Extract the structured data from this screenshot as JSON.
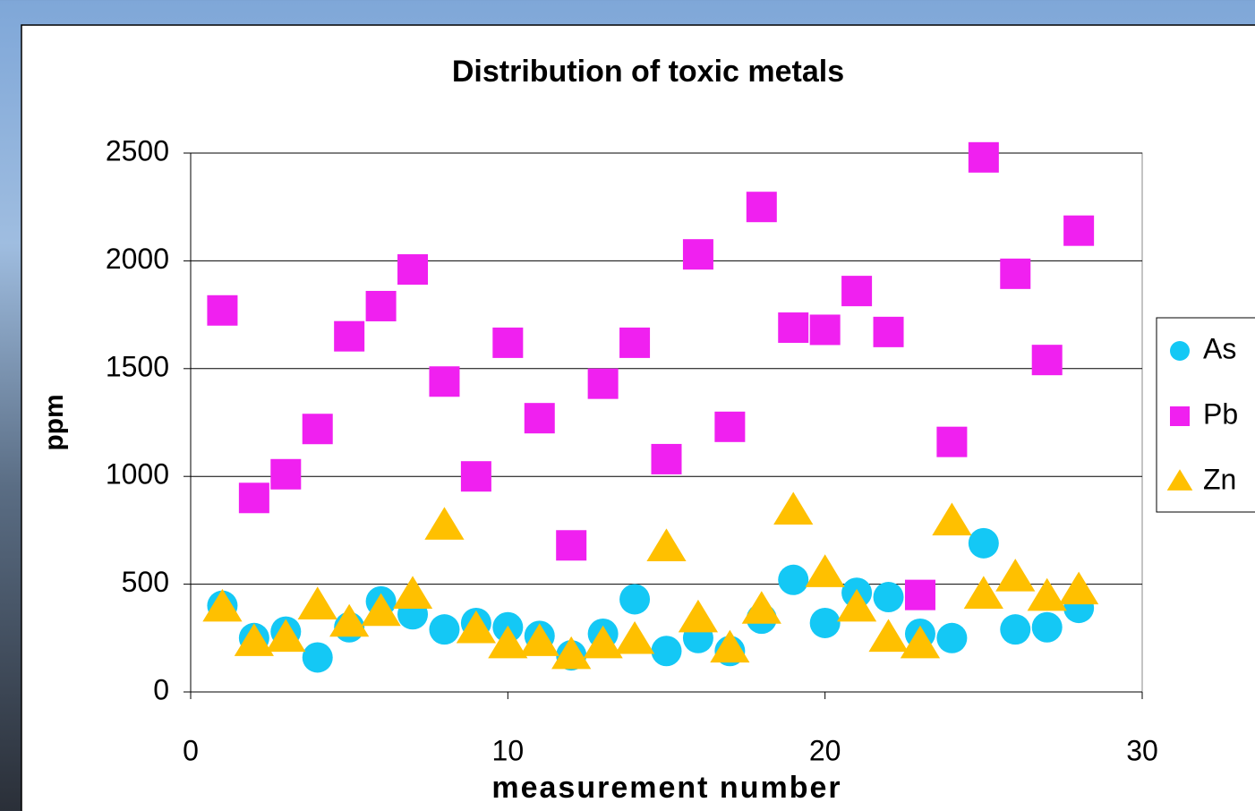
{
  "chart_data": {
    "type": "scatter",
    "title": "Distribution of toxic metals",
    "x_label": "measurement number",
    "y_label": "ppm",
    "x": [
      1,
      2,
      3,
      4,
      5,
      6,
      7,
      8,
      9,
      10,
      11,
      12,
      13,
      14,
      15,
      16,
      17,
      18,
      19,
      20,
      21,
      22,
      23,
      24,
      25,
      26,
      27,
      28
    ],
    "series": [
      {
        "name": "As",
        "color": "#14c8f5",
        "marker": "circle",
        "values": [
          400,
          250,
          280,
          160,
          300,
          420,
          360,
          290,
          320,
          300,
          260,
          170,
          270,
          430,
          190,
          250,
          190,
          340,
          520,
          320,
          460,
          440,
          270,
          250,
          690,
          290,
          300,
          390
        ]
      },
      {
        "name": "Pb",
        "color": "#f020f0",
        "marker": "square",
        "values": [
          1770,
          900,
          1010,
          1220,
          1650,
          1790,
          1960,
          1440,
          1000,
          1620,
          1270,
          680,
          1430,
          1620,
          1080,
          2030,
          1230,
          2250,
          1690,
          1680,
          1860,
          1670,
          450,
          1160,
          2480,
          1940,
          1540,
          2140
        ]
      },
      {
        "name": "Zn",
        "color": "#ffc000",
        "marker": "triangle",
        "values": [
          390,
          230,
          250,
          400,
          320,
          370,
          450,
          770,
          290,
          220,
          230,
          170,
          220,
          240,
          670,
          340,
          200,
          380,
          840,
          550,
          390,
          250,
          220,
          790,
          450,
          530,
          440,
          470
        ]
      }
    ],
    "xlim": [
      0,
      30
    ],
    "xticks": [
      0,
      10,
      20,
      30
    ],
    "ylim": [
      0,
      2500
    ],
    "yticks": [
      0,
      500,
      1000,
      1500,
      2000,
      2500
    ],
    "grid": true,
    "legend": "right"
  }
}
